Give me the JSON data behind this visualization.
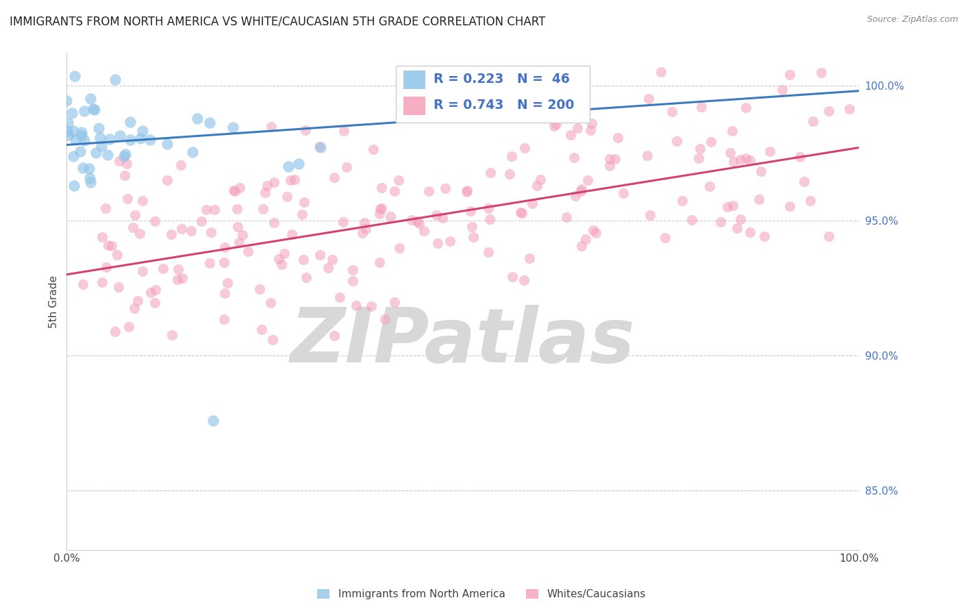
{
  "title": "IMMIGRANTS FROM NORTH AMERICA VS WHITE/CAUCASIAN 5TH GRADE CORRELATION CHART",
  "source": "Source: ZipAtlas.com",
  "ylabel": "5th Grade",
  "x_min": 0.0,
  "x_max": 1.0,
  "y_min": 0.828,
  "y_max": 1.012,
  "y_ticks": [
    0.85,
    0.9,
    0.95,
    1.0
  ],
  "y_tick_labels": [
    "85.0%",
    "90.0%",
    "95.0%",
    "100.0%"
  ],
  "R_blue": 0.223,
  "N_blue": 46,
  "R_pink": 0.743,
  "N_pink": 200,
  "blue_color": "#90c4e8",
  "pink_color": "#f4a0b8",
  "blue_line_color": "#3a7bbf",
  "pink_line_color": "#d44070",
  "background_color": "#ffffff",
  "watermark": "ZIPatlas",
  "watermark_color": "#d8d8d8",
  "legend_label_blue": "Immigrants from North America",
  "legend_label_pink": "Whites/Caucasians",
  "blue_line_y_start": 0.978,
  "blue_line_y_end": 0.998,
  "pink_line_y_start": 0.93,
  "pink_line_y_end": 0.977
}
